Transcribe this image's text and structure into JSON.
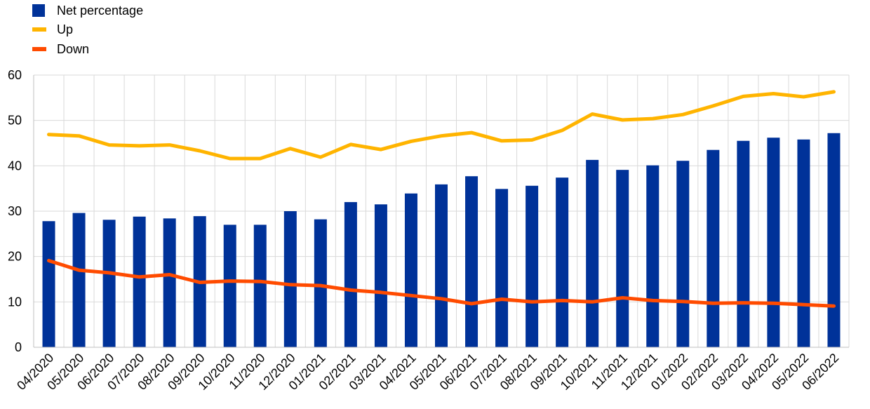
{
  "chart_data": {
    "type": "bar",
    "categories": [
      "04/2020",
      "05/2020",
      "06/2020",
      "07/2020",
      "08/2020",
      "09/2020",
      "10/2020",
      "11/2020",
      "12/2020",
      "01/2021",
      "02/2021",
      "03/2021",
      "04/2021",
      "05/2021",
      "06/2021",
      "07/2021",
      "08/2021",
      "09/2021",
      "10/2021",
      "11/2021",
      "12/2021",
      "01/2022",
      "02/2022",
      "03/2022",
      "04/2022",
      "05/2022",
      "06/2022"
    ],
    "series": [
      {
        "name": "Net percentage",
        "kind": "bar",
        "color": "#003299",
        "values": [
          27.8,
          29.6,
          28.1,
          28.8,
          28.4,
          28.9,
          27.0,
          27.0,
          30.0,
          28.2,
          32.0,
          31.5,
          33.9,
          35.9,
          37.7,
          34.9,
          35.6,
          37.4,
          41.3,
          39.1,
          40.1,
          41.1,
          43.5,
          45.5,
          46.2,
          45.8,
          47.2
        ]
      },
      {
        "name": "Up",
        "kind": "line",
        "color": "#FFB400",
        "values": [
          46.9,
          46.6,
          44.6,
          44.4,
          44.6,
          43.3,
          41.6,
          41.6,
          43.8,
          41.9,
          44.7,
          43.6,
          45.4,
          46.6,
          47.3,
          45.5,
          45.7,
          47.8,
          51.4,
          50.1,
          50.4,
          51.3,
          53.2,
          55.3,
          55.9,
          55.2,
          56.3
        ]
      },
      {
        "name": "Down",
        "kind": "line",
        "color": "#FF4B00",
        "values": [
          19.1,
          17.0,
          16.4,
          15.5,
          16.0,
          14.3,
          14.6,
          14.5,
          13.8,
          13.6,
          12.6,
          12.1,
          11.4,
          10.7,
          9.6,
          10.6,
          10.0,
          10.3,
          10.0,
          10.9,
          10.3,
          10.1,
          9.7,
          9.8,
          9.7,
          9.4,
          9.1
        ]
      }
    ],
    "ylim": [
      0,
      60
    ],
    "yticks": [
      0,
      10,
      20,
      30,
      40,
      50,
      60
    ],
    "grid": true,
    "legend_position": "top-left"
  }
}
